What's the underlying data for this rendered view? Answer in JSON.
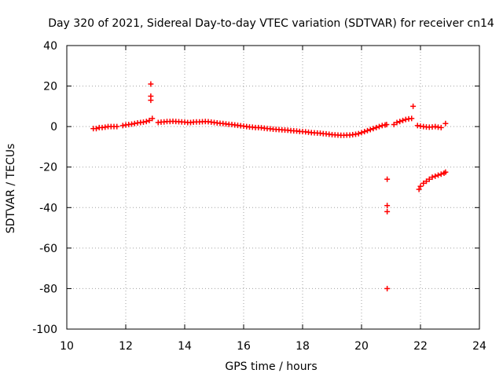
{
  "chart_data": {
    "type": "scatter",
    "title": "Day 320 of 2021, Sidereal Day-to-day VTEC variation (SDTVAR) for receiver cn14",
    "xlabel": "GPS time / hours",
    "ylabel": "SDTVAR / TECUs",
    "xlim": [
      10,
      24
    ],
    "ylim": [
      -100,
      40
    ],
    "xticks": [
      10,
      12,
      14,
      16,
      18,
      20,
      22,
      24
    ],
    "yticks": [
      -100,
      -80,
      -60,
      -40,
      -20,
      0,
      20,
      40
    ],
    "grid": true,
    "marker": "+",
    "color": "#ff0000",
    "series": [
      {
        "name": "SDTVAR",
        "x": [
          10.9,
          11.0,
          11.1,
          11.2,
          11.3,
          11.4,
          11.5,
          11.6,
          11.7,
          11.9,
          12.0,
          12.1,
          12.2,
          12.3,
          12.4,
          12.5,
          12.6,
          12.7,
          12.8,
          12.85,
          12.85,
          12.85,
          12.9,
          13.1,
          13.2,
          13.3,
          13.4,
          13.5,
          13.6,
          13.7,
          13.8,
          13.9,
          14.0,
          14.1,
          14.2,
          14.3,
          14.4,
          14.5,
          14.6,
          14.7,
          14.8,
          14.9,
          15.0,
          15.1,
          15.2,
          15.3,
          15.4,
          15.5,
          15.6,
          15.7,
          15.8,
          15.9,
          16.0,
          16.1,
          16.2,
          16.3,
          16.4,
          16.5,
          16.6,
          16.7,
          16.8,
          16.9,
          17.0,
          17.1,
          17.2,
          17.3,
          17.4,
          17.5,
          17.6,
          17.7,
          17.8,
          17.9,
          18.0,
          18.1,
          18.2,
          18.3,
          18.4,
          18.5,
          18.6,
          18.7,
          18.8,
          18.9,
          19.0,
          19.1,
          19.2,
          19.3,
          19.4,
          19.5,
          19.6,
          19.7,
          19.8,
          19.9,
          20.0,
          20.1,
          20.2,
          20.3,
          20.4,
          20.5,
          20.6,
          20.7,
          20.8,
          20.85,
          20.87,
          20.87,
          20.87,
          20.87,
          21.1,
          21.2,
          21.3,
          21.4,
          21.5,
          21.6,
          21.7,
          21.75,
          21.9,
          22.0,
          22.1,
          22.2,
          22.3,
          22.4,
          22.5,
          22.6,
          22.7,
          22.85,
          21.95,
          22.0,
          22.1,
          22.2,
          22.3,
          22.4,
          22.5,
          22.6,
          22.7,
          22.8,
          22.85
        ],
        "y": [
          -1,
          -1,
          -0.5,
          -0.5,
          -0.3,
          0,
          0,
          0,
          0,
          0.5,
          0.8,
          1,
          1.2,
          1.5,
          1.8,
          2,
          2.2,
          2.5,
          3,
          21,
          15,
          13,
          4,
          2,
          2.2,
          2.3,
          2.5,
          2.5,
          2.6,
          2.5,
          2.4,
          2.3,
          2.2,
          2,
          2,
          2.2,
          2.3,
          2.3,
          2.4,
          2.5,
          2.4,
          2.2,
          2,
          1.8,
          1.6,
          1.5,
          1.3,
          1.1,
          1,
          0.8,
          0.6,
          0.4,
          0.2,
          0,
          -0.2,
          -0.3,
          -0.5,
          -0.5,
          -0.6,
          -0.8,
          -1,
          -1.1,
          -1.3,
          -1.4,
          -1.5,
          -1.6,
          -1.7,
          -1.8,
          -2,
          -2.1,
          -2.2,
          -2.4,
          -2.5,
          -2.6,
          -2.8,
          -3,
          -3.1,
          -3.2,
          -3.3,
          -3.5,
          -3.6,
          -3.8,
          -4,
          -4.1,
          -4.2,
          -4.3,
          -4.3,
          -4.2,
          -4.2,
          -4,
          -3.8,
          -3.5,
          -3,
          -2.5,
          -2,
          -1.5,
          -1,
          -0.5,
          0,
          0.5,
          0.8,
          1,
          -26,
          -39,
          -42,
          -80,
          1,
          2,
          2.5,
          3,
          3.5,
          3.8,
          4,
          10,
          0.5,
          0.2,
          0,
          -0.2,
          -0.3,
          -0.2,
          0,
          -0.3,
          -0.5,
          1.5,
          -31,
          -29.5,
          -28,
          -27,
          -26,
          -25,
          -24.5,
          -24,
          -23.5,
          -23,
          -22.5
        ]
      }
    ]
  }
}
